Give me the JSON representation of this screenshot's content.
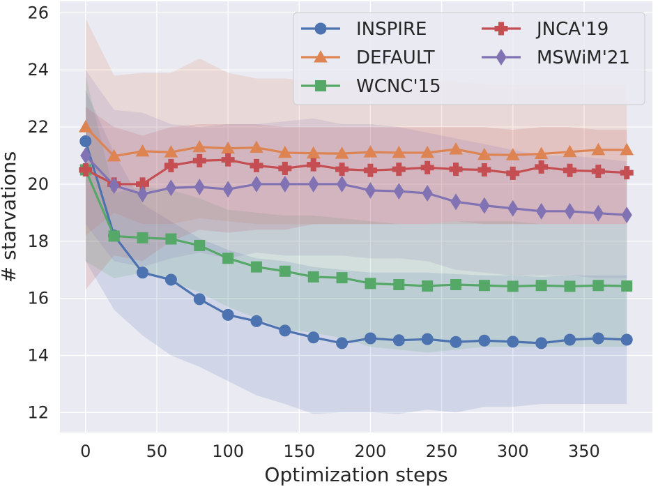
{
  "chart_data": {
    "type": "line",
    "title": "",
    "xlabel": "Optimization steps",
    "ylabel": "# starvations",
    "xlim": [
      -18,
      398
    ],
    "ylim": [
      11.3,
      26.4
    ],
    "x_ticks": [
      0,
      50,
      100,
      150,
      200,
      250,
      300,
      350
    ],
    "y_ticks": [
      12,
      14,
      16,
      18,
      20,
      22,
      24,
      26
    ],
    "grid": true,
    "legend_position": "top-right",
    "x": [
      0,
      20,
      40,
      60,
      80,
      100,
      120,
      140,
      160,
      180,
      200,
      220,
      240,
      260,
      280,
      300,
      320,
      340,
      360,
      380
    ],
    "series": [
      {
        "name": "INSPIRE",
        "color": "#4c72b0",
        "marker": "circle",
        "values": [
          21.5,
          18.2,
          16.9,
          16.65,
          15.97,
          15.42,
          15.2,
          14.87,
          14.63,
          14.43,
          14.6,
          14.53,
          14.57,
          14.47,
          14.52,
          14.48,
          14.43,
          14.55,
          14.6,
          14.55
        ],
        "band_upper": [
          23.3,
          21.1,
          19.3,
          18.7,
          18.1,
          17.7,
          17.4,
          17.3,
          17.1,
          17.0,
          16.9,
          16.9,
          16.9,
          16.85,
          16.8,
          16.8,
          16.75,
          16.8,
          16.8,
          16.8
        ],
        "band_lower": [
          17.3,
          15.6,
          14.7,
          14.0,
          13.6,
          13.1,
          12.6,
          12.3,
          11.95,
          12.0,
          12.0,
          11.95,
          12.1,
          12.0,
          12.2,
          12.2,
          12.3,
          12.3,
          12.3,
          12.3
        ]
      },
      {
        "name": "DEFAULT",
        "color": "#dd8452",
        "marker": "triangle",
        "values": [
          22.0,
          20.98,
          21.15,
          21.12,
          21.3,
          21.25,
          21.28,
          21.1,
          21.08,
          21.07,
          21.12,
          21.1,
          21.1,
          21.22,
          21.03,
          21.02,
          21.06,
          21.13,
          21.2,
          21.2
        ],
        "band_upper": [
          25.8,
          23.8,
          23.9,
          23.9,
          24.4,
          23.9,
          23.7,
          23.7,
          23.6,
          23.6,
          23.6,
          23.6,
          23.6,
          23.6,
          23.5,
          23.5,
          23.5,
          23.5,
          23.5,
          23.5
        ],
        "band_lower": [
          18.2,
          19.0,
          18.6,
          18.6,
          18.8,
          18.7,
          18.6,
          18.6,
          18.6,
          18.6,
          18.6,
          18.6,
          18.6,
          18.6,
          18.6,
          18.6,
          18.6,
          18.6,
          18.6,
          18.6
        ]
      },
      {
        "name": "WCNC'15",
        "color": "#55a868",
        "marker": "square",
        "values": [
          20.5,
          18.18,
          18.12,
          18.08,
          17.85,
          17.4,
          17.1,
          16.95,
          16.75,
          16.72,
          16.52,
          16.48,
          16.43,
          16.48,
          16.45,
          16.42,
          16.45,
          16.42,
          16.45,
          16.43
        ],
        "band_upper": [
          23.8,
          19.7,
          19.9,
          19.8,
          19.5,
          19.1,
          19.0,
          18.9,
          18.9,
          18.8,
          18.7,
          18.6,
          18.6,
          18.7,
          18.7,
          18.7,
          18.6,
          18.6,
          18.6,
          18.6
        ],
        "band_lower": [
          17.3,
          16.7,
          16.9,
          16.6,
          16.2,
          15.7,
          15.3,
          14.9,
          14.8,
          14.6,
          14.3,
          14.2,
          14.1,
          14.2,
          14.3,
          14.3,
          14.3,
          14.3,
          14.3,
          14.3
        ]
      },
      {
        "name": "JNCA'19",
        "color": "#c44e52",
        "marker": "plus",
        "values": [
          20.5,
          20.0,
          20.0,
          20.65,
          20.82,
          20.85,
          20.65,
          20.55,
          20.68,
          20.52,
          20.48,
          20.52,
          20.58,
          20.52,
          20.5,
          20.38,
          20.6,
          20.48,
          20.45,
          20.4
        ],
        "band_upper": [
          22.7,
          22.0,
          21.7,
          22.0,
          22.1,
          22.1,
          22.1,
          22.0,
          22.0,
          22.0,
          22.0,
          22.0,
          22.0,
          22.0,
          22.0,
          21.9,
          22.0,
          22.0,
          21.9,
          21.9
        ],
        "band_lower": [
          16.3,
          17.5,
          17.3,
          18.0,
          18.4,
          18.3,
          18.4,
          18.4,
          18.6,
          18.6,
          18.6,
          18.6,
          18.6,
          18.7,
          18.6,
          18.6,
          18.6,
          18.6,
          18.6,
          18.6
        ]
      },
      {
        "name": "MSWiM'21",
        "color": "#8172b3",
        "marker": "diamond",
        "values": [
          21.0,
          19.95,
          19.65,
          19.87,
          19.9,
          19.82,
          20.0,
          20.0,
          20.0,
          20.0,
          19.78,
          19.75,
          19.68,
          19.38,
          19.25,
          19.15,
          19.05,
          19.05,
          18.98,
          18.92
        ],
        "band_upper": [
          24.0,
          22.6,
          22.5,
          22.1,
          22.0,
          22.1,
          22.1,
          22.2,
          22.3,
          22.1,
          22.1,
          22.0,
          21.8,
          21.6,
          21.4,
          21.2,
          21.0,
          21.0,
          20.9,
          20.8
        ],
        "band_lower": [
          18.6,
          17.3,
          17.1,
          17.4,
          17.6,
          17.4,
          17.6,
          17.5,
          17.5,
          17.5,
          17.4,
          17.4,
          17.3,
          17.0,
          16.9,
          16.8,
          16.8,
          16.8,
          16.7,
          16.7
        ]
      }
    ]
  }
}
